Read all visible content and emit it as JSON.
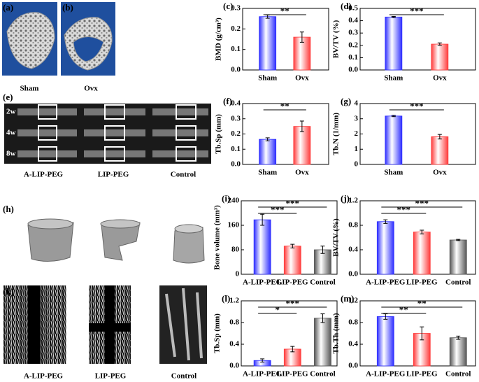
{
  "image_panels": [
    {
      "tag": "(a)",
      "captions": [
        "Sham"
      ]
    },
    {
      "tag": "(b)",
      "captions": [
        "Ovx"
      ]
    },
    {
      "tag": "(e)",
      "row_labels": [
        "2w",
        "4w",
        "8w"
      ],
      "captions": [
        "A-LIP-PEG",
        "LIP-PEG",
        "Control"
      ]
    },
    {
      "tag": "(h)"
    },
    {
      "tag": "(k)",
      "captions": [
        "A-LIP-PEG",
        "LIP-PEG",
        "Control"
      ]
    }
  ],
  "chart_data": [
    {
      "type": "bar",
      "tag": "(c)",
      "y_label": "BMD (g/cm³)",
      "categories": [
        "Sham",
        "Ovx"
      ],
      "values": [
        0.26,
        0.16
      ],
      "errors": [
        0.008,
        0.025
      ],
      "colors": [
        "#2e2eff",
        "#ff3b3b"
      ],
      "ylim": [
        0,
        0.3
      ],
      "yticks": [
        {
          "value": 0,
          "label": "0.0"
        },
        0.1,
        0.2,
        0.3
      ],
      "annotations": [
        "**"
      ]
    },
    {
      "type": "bar",
      "tag": "(d)",
      "y_label": "BV/TV (%)",
      "categories": [
        "Sham",
        "Ovx"
      ],
      "values": [
        0.43,
        0.21
      ],
      "errors": [
        0.005,
        0.01
      ],
      "colors": [
        "#2e2eff",
        "#ff3b3b"
      ],
      "ylim": [
        0,
        0.5
      ],
      "yticks": [
        {
          "value": 0,
          "label": "0.0"
        },
        0.1,
        0.2,
        0.3,
        0.4,
        0.5
      ],
      "annotations": [
        "***"
      ]
    },
    {
      "type": "bar",
      "tag": "(f)",
      "y_label": "Tb.Sp (mm)",
      "categories": [
        "Sham",
        "Ovx"
      ],
      "values": [
        0.165,
        0.25
      ],
      "errors": [
        0.01,
        0.035
      ],
      "colors": [
        "#2e2eff",
        "#ff3b3b"
      ],
      "ylim": [
        0,
        0.4
      ],
      "yticks": [
        {
          "value": 0,
          "label": "0.0"
        },
        0.1,
        0.2,
        0.3,
        0.4
      ],
      "annotations": [
        "**"
      ]
    },
    {
      "type": "bar",
      "tag": "(g)",
      "y_label": "Tb.N  (1/mm)",
      "categories": [
        "Sham",
        "Ovx"
      ],
      "values": [
        3.18,
        1.82
      ],
      "errors": [
        0.04,
        0.15
      ],
      "colors": [
        "#2e2eff",
        "#ff3b3b"
      ],
      "ylim": [
        0,
        4
      ],
      "yticks": [
        0,
        1,
        2,
        3,
        4
      ],
      "annotations": [
        "***"
      ]
    },
    {
      "type": "bar",
      "tag": "(i)",
      "y_label": "Bone volume (mm³)",
      "categories": [
        "A-LIP-PEG",
        "LIP-PEG",
        "Control"
      ],
      "values": [
        178,
        92,
        80
      ],
      "errors": [
        18,
        6,
        12
      ],
      "colors": [
        "#2e2eff",
        "#ff3b3b",
        "#555555"
      ],
      "ylim": [
        0,
        240
      ],
      "yticks": [
        0,
        80,
        160,
        240
      ],
      "annotations": [
        "***",
        "***"
      ]
    },
    {
      "type": "bar",
      "tag": "(j)",
      "y_label": "BV/TV (%)",
      "categories": [
        "A-LIP-PEG",
        "LIP-PEG",
        "Control"
      ],
      "values": [
        0.86,
        0.69,
        0.56
      ],
      "errors": [
        0.03,
        0.03,
        0.01
      ],
      "colors": [
        "#2e2eff",
        "#ff3b3b",
        "#555555"
      ],
      "ylim": [
        0,
        1.2
      ],
      "yticks": [
        {
          "value": 0,
          "label": "0.0"
        },
        0.4,
        0.8,
        1.2
      ],
      "annotations": [
        "***",
        "***"
      ]
    },
    {
      "type": "bar",
      "tag": "(l)",
      "y_label": "Tb.Sp (mm)",
      "categories": [
        "A-LIP-PEG",
        "LIP-PEG",
        "Control"
      ],
      "values": [
        0.1,
        0.31,
        0.88
      ],
      "errors": [
        0.03,
        0.05,
        0.08
      ],
      "colors": [
        "#2e2eff",
        "#ff3b3b",
        "#555555"
      ],
      "ylim": [
        0,
        1.2
      ],
      "yticks": [
        {
          "value": 0,
          "label": "0.0"
        },
        0.4,
        0.8,
        1.2
      ],
      "annotations": [
        "*",
        "***"
      ]
    },
    {
      "type": "bar",
      "tag": "(m)",
      "y_label": "Tb.Th (mm)",
      "categories": [
        "A-LIP-PEG",
        "LIP-PEG",
        "Control"
      ],
      "values": [
        0.91,
        0.6,
        0.52
      ],
      "errors": [
        0.05,
        0.12,
        0.03
      ],
      "colors": [
        "#2e2eff",
        "#ff3b3b",
        "#555555"
      ],
      "ylim": [
        0,
        1.2
      ],
      "yticks": [
        {
          "value": 0,
          "label": "0.0"
        },
        0.4,
        0.8,
        1.2
      ],
      "annotations": [
        "**",
        "**"
      ]
    }
  ]
}
